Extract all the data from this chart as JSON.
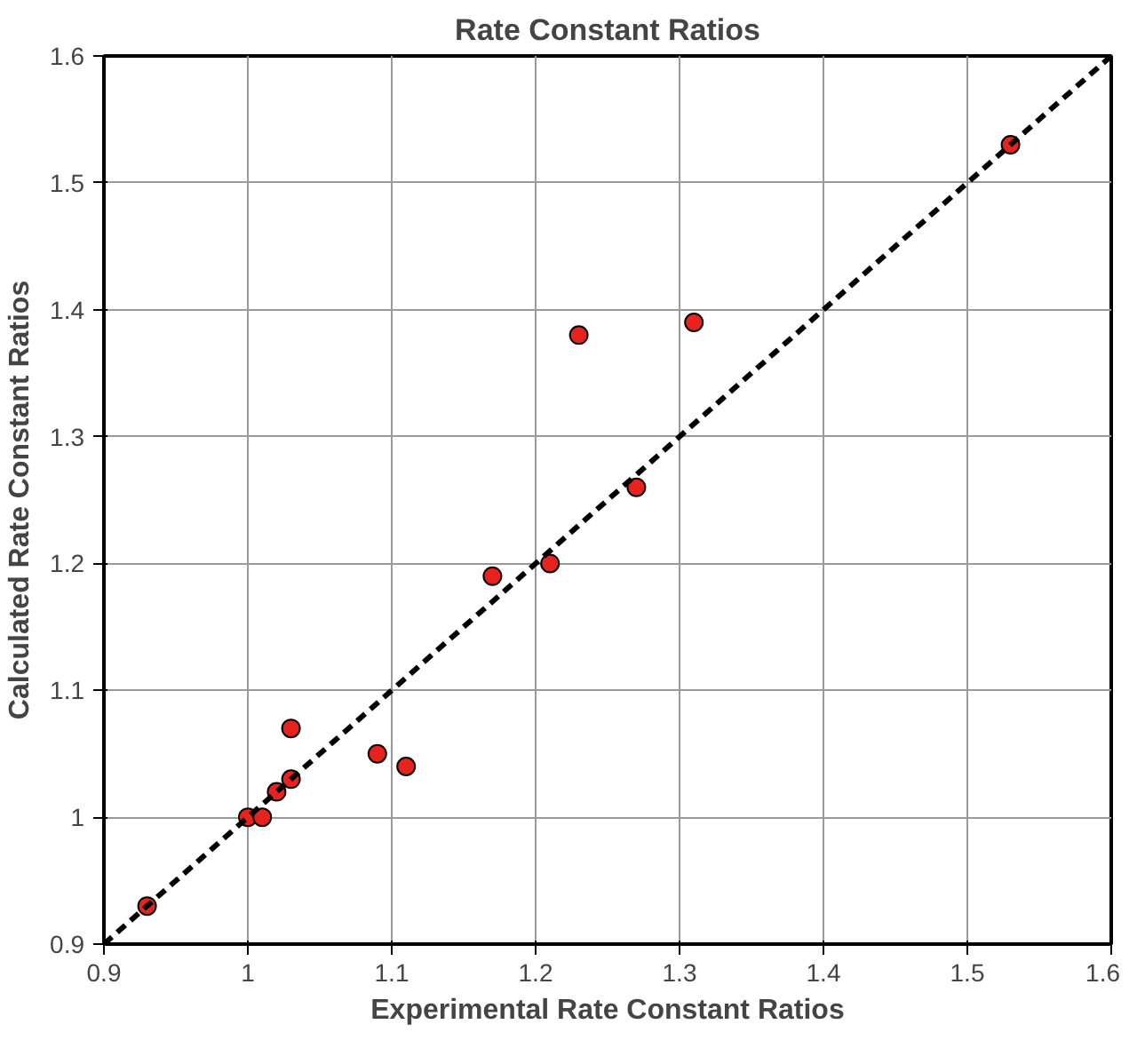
{
  "chart_data": {
    "type": "scatter",
    "title": "Rate Constant Ratios",
    "xlabel": "Experimental Rate Constant Ratios",
    "ylabel": "Calculated Rate Constant Ratios",
    "xlim": [
      0.9,
      1.6
    ],
    "ylim": [
      0.9,
      1.6
    ],
    "xticks": [
      0.9,
      1,
      1.1,
      1.2,
      1.3,
      1.4,
      1.5,
      1.6
    ],
    "yticks": [
      0.9,
      1,
      1.1,
      1.2,
      1.3,
      1.4,
      1.5,
      1.6
    ],
    "grid": true,
    "marker": "circle",
    "series": [
      {
        "color": "#e8231e",
        "x": [
          0.93,
          1.0,
          1.01,
          1.02,
          1.03,
          1.03,
          1.09,
          1.11,
          1.17,
          1.21,
          1.23,
          1.27,
          1.31,
          1.53
        ],
        "values": [
          0.93,
          1.0,
          1.0,
          1.02,
          1.03,
          1.07,
          1.05,
          1.04,
          1.19,
          1.2,
          1.38,
          1.26,
          1.39,
          1.53
        ]
      },
      {
        "type": "line",
        "marker": "none",
        "color": "#000000",
        "line_style": "dashed",
        "x": [
          0.9,
          1.6
        ],
        "values": [
          0.9,
          1.6
        ]
      }
    ]
  }
}
